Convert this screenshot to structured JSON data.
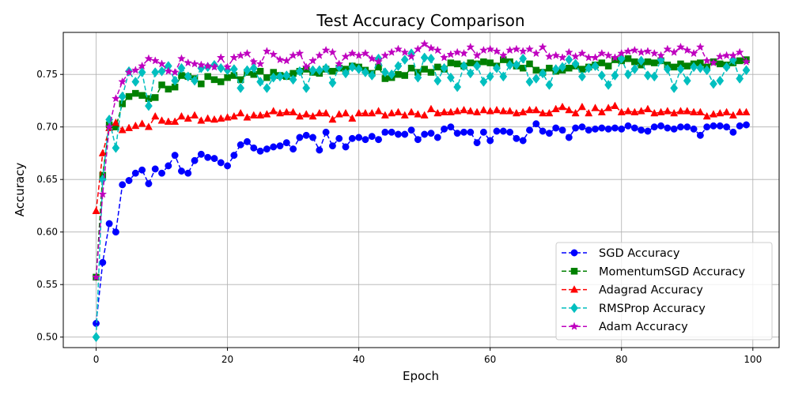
{
  "chart_data": {
    "type": "line",
    "title": "Test Accuracy Comparison",
    "xlabel": "Epoch",
    "ylabel": "Accuracy",
    "xlim": [
      -5,
      104
    ],
    "ylim": [
      0.49,
      0.79
    ],
    "xticks": [
      0,
      20,
      40,
      60,
      80,
      100
    ],
    "yticks": [
      0.5,
      0.55,
      0.6,
      0.65,
      0.7,
      0.75
    ],
    "xtick_labels": [
      "0",
      "20",
      "40",
      "60",
      "80",
      "100"
    ],
    "ytick_labels": [
      "0.50",
      "0.55",
      "0.60",
      "0.65",
      "0.70",
      "0.75"
    ],
    "grid": true,
    "legend_position": "lower-right",
    "x": [
      0,
      1,
      2,
      3,
      4,
      5,
      6,
      7,
      8,
      9,
      10,
      11,
      12,
      13,
      14,
      15,
      16,
      17,
      18,
      19,
      20,
      21,
      22,
      23,
      24,
      25,
      26,
      27,
      28,
      29,
      30,
      31,
      32,
      33,
      34,
      35,
      36,
      37,
      38,
      39,
      40,
      41,
      42,
      43,
      44,
      45,
      46,
      47,
      48,
      49,
      50,
      51,
      52,
      53,
      54,
      55,
      56,
      57,
      58,
      59,
      60,
      61,
      62,
      63,
      64,
      65,
      66,
      67,
      68,
      69,
      70,
      71,
      72,
      73,
      74,
      75,
      76,
      77,
      78,
      79,
      80,
      81,
      82,
      83,
      84,
      85,
      86,
      87,
      88,
      89,
      90,
      91,
      92,
      93,
      94,
      95,
      96,
      97,
      98,
      99
    ],
    "series": [
      {
        "name": "SGD Accuracy",
        "color": "#0000ff",
        "marker": "circle",
        "values": [
          0.513,
          0.571,
          0.608,
          0.6,
          0.645,
          0.649,
          0.656,
          0.659,
          0.646,
          0.66,
          0.656,
          0.663,
          0.673,
          0.658,
          0.656,
          0.668,
          0.674,
          0.671,
          0.67,
          0.666,
          0.663,
          0.673,
          0.683,
          0.686,
          0.68,
          0.677,
          0.679,
          0.681,
          0.682,
          0.685,
          0.679,
          0.69,
          0.692,
          0.69,
          0.678,
          0.695,
          0.682,
          0.689,
          0.681,
          0.689,
          0.69,
          0.688,
          0.691,
          0.688,
          0.695,
          0.695,
          0.693,
          0.693,
          0.697,
          0.688,
          0.693,
          0.694,
          0.69,
          0.698,
          0.7,
          0.694,
          0.695,
          0.695,
          0.685,
          0.695,
          0.687,
          0.696,
          0.696,
          0.695,
          0.689,
          0.687,
          0.697,
          0.703,
          0.696,
          0.694,
          0.699,
          0.697,
          0.69,
          0.699,
          0.7,
          0.697,
          0.698,
          0.699,
          0.698,
          0.699,
          0.698,
          0.701,
          0.699,
          0.697,
          0.696,
          0.7,
          0.701,
          0.699,
          0.698,
          0.7,
          0.7,
          0.698,
          0.692,
          0.7,
          0.701,
          0.701,
          0.7,
          0.695,
          0.701,
          0.702
        ]
      },
      {
        "name": "MomentumSGD Accuracy",
        "color": "#008000",
        "marker": "square",
        "values": [
          0.557,
          0.654,
          0.702,
          0.7,
          0.722,
          0.729,
          0.732,
          0.73,
          0.727,
          0.728,
          0.74,
          0.736,
          0.738,
          0.749,
          0.748,
          0.746,
          0.741,
          0.748,
          0.745,
          0.743,
          0.747,
          0.749,
          0.745,
          0.752,
          0.75,
          0.753,
          0.747,
          0.752,
          0.749,
          0.748,
          0.751,
          0.753,
          0.755,
          0.752,
          0.751,
          0.755,
          0.753,
          0.756,
          0.755,
          0.758,
          0.757,
          0.754,
          0.751,
          0.757,
          0.746,
          0.747,
          0.75,
          0.749,
          0.756,
          0.752,
          0.755,
          0.752,
          0.757,
          0.755,
          0.761,
          0.76,
          0.758,
          0.761,
          0.76,
          0.762,
          0.761,
          0.758,
          0.764,
          0.762,
          0.758,
          0.756,
          0.76,
          0.754,
          0.752,
          0.756,
          0.753,
          0.754,
          0.756,
          0.758,
          0.755,
          0.757,
          0.759,
          0.761,
          0.758,
          0.764,
          0.763,
          0.765,
          0.762,
          0.759,
          0.762,
          0.761,
          0.763,
          0.759,
          0.757,
          0.76,
          0.758,
          0.76,
          0.761,
          0.757,
          0.762,
          0.76,
          0.759,
          0.761,
          0.763,
          0.764
        ]
      },
      {
        "name": "Adagrad Accuracy",
        "color": "#ff0000",
        "marker": "triangle",
        "values": [
          0.62,
          0.675,
          0.699,
          0.704,
          0.697,
          0.699,
          0.701,
          0.703,
          0.7,
          0.71,
          0.706,
          0.705,
          0.705,
          0.71,
          0.708,
          0.711,
          0.706,
          0.708,
          0.707,
          0.708,
          0.709,
          0.71,
          0.713,
          0.709,
          0.711,
          0.711,
          0.712,
          0.715,
          0.713,
          0.714,
          0.714,
          0.71,
          0.712,
          0.71,
          0.713,
          0.713,
          0.707,
          0.712,
          0.713,
          0.708,
          0.713,
          0.713,
          0.713,
          0.715,
          0.711,
          0.713,
          0.714,
          0.711,
          0.714,
          0.712,
          0.711,
          0.717,
          0.713,
          0.714,
          0.714,
          0.715,
          0.716,
          0.715,
          0.714,
          0.716,
          0.715,
          0.716,
          0.715,
          0.715,
          0.713,
          0.714,
          0.716,
          0.716,
          0.713,
          0.713,
          0.717,
          0.719,
          0.716,
          0.713,
          0.719,
          0.713,
          0.718,
          0.714,
          0.718,
          0.72,
          0.714,
          0.715,
          0.714,
          0.715,
          0.717,
          0.713,
          0.714,
          0.715,
          0.713,
          0.715,
          0.715,
          0.714,
          0.714,
          0.71,
          0.712,
          0.713,
          0.714,
          0.711,
          0.714,
          0.714
        ]
      },
      {
        "name": "RMSProp Accuracy",
        "color": "#00bfbf",
        "marker": "diamond",
        "values": [
          0.5,
          0.65,
          0.707,
          0.68,
          0.729,
          0.753,
          0.743,
          0.752,
          0.72,
          0.752,
          0.753,
          0.758,
          0.744,
          0.756,
          0.748,
          0.744,
          0.756,
          0.757,
          0.759,
          0.756,
          0.754,
          0.755,
          0.737,
          0.754,
          0.756,
          0.743,
          0.737,
          0.747,
          0.748,
          0.749,
          0.745,
          0.753,
          0.737,
          0.754,
          0.754,
          0.756,
          0.742,
          0.757,
          0.751,
          0.757,
          0.755,
          0.752,
          0.749,
          0.765,
          0.752,
          0.75,
          0.758,
          0.764,
          0.77,
          0.747,
          0.766,
          0.765,
          0.744,
          0.756,
          0.747,
          0.738,
          0.758,
          0.751,
          0.758,
          0.743,
          0.748,
          0.756,
          0.748,
          0.759,
          0.759,
          0.765,
          0.743,
          0.746,
          0.751,
          0.74,
          0.755,
          0.757,
          0.764,
          0.76,
          0.748,
          0.756,
          0.758,
          0.749,
          0.74,
          0.749,
          0.765,
          0.75,
          0.755,
          0.763,
          0.749,
          0.748,
          0.764,
          0.755,
          0.737,
          0.755,
          0.744,
          0.757,
          0.756,
          0.754,
          0.741,
          0.744,
          0.757,
          0.764,
          0.746,
          0.754
        ]
      },
      {
        "name": "Adam Accuracy",
        "color": "#bf00bf",
        "marker": "star",
        "values": [
          0.557,
          0.636,
          0.7,
          0.727,
          0.743,
          0.752,
          0.754,
          0.758,
          0.765,
          0.763,
          0.76,
          0.753,
          0.752,
          0.765,
          0.761,
          0.76,
          0.759,
          0.758,
          0.757,
          0.766,
          0.757,
          0.766,
          0.768,
          0.77,
          0.762,
          0.76,
          0.772,
          0.769,
          0.764,
          0.763,
          0.768,
          0.77,
          0.757,
          0.763,
          0.768,
          0.773,
          0.771,
          0.76,
          0.767,
          0.77,
          0.768,
          0.77,
          0.765,
          0.762,
          0.768,
          0.771,
          0.774,
          0.771,
          0.767,
          0.774,
          0.779,
          0.775,
          0.773,
          0.766,
          0.769,
          0.771,
          0.77,
          0.776,
          0.768,
          0.773,
          0.774,
          0.772,
          0.768,
          0.773,
          0.774,
          0.772,
          0.774,
          0.77,
          0.776,
          0.767,
          0.768,
          0.766,
          0.771,
          0.767,
          0.77,
          0.766,
          0.766,
          0.77,
          0.768,
          0.766,
          0.77,
          0.772,
          0.773,
          0.771,
          0.772,
          0.77,
          0.768,
          0.774,
          0.771,
          0.776,
          0.773,
          0.77,
          0.776,
          0.763,
          0.761,
          0.767,
          0.768,
          0.768,
          0.771,
          0.762
        ]
      }
    ]
  }
}
